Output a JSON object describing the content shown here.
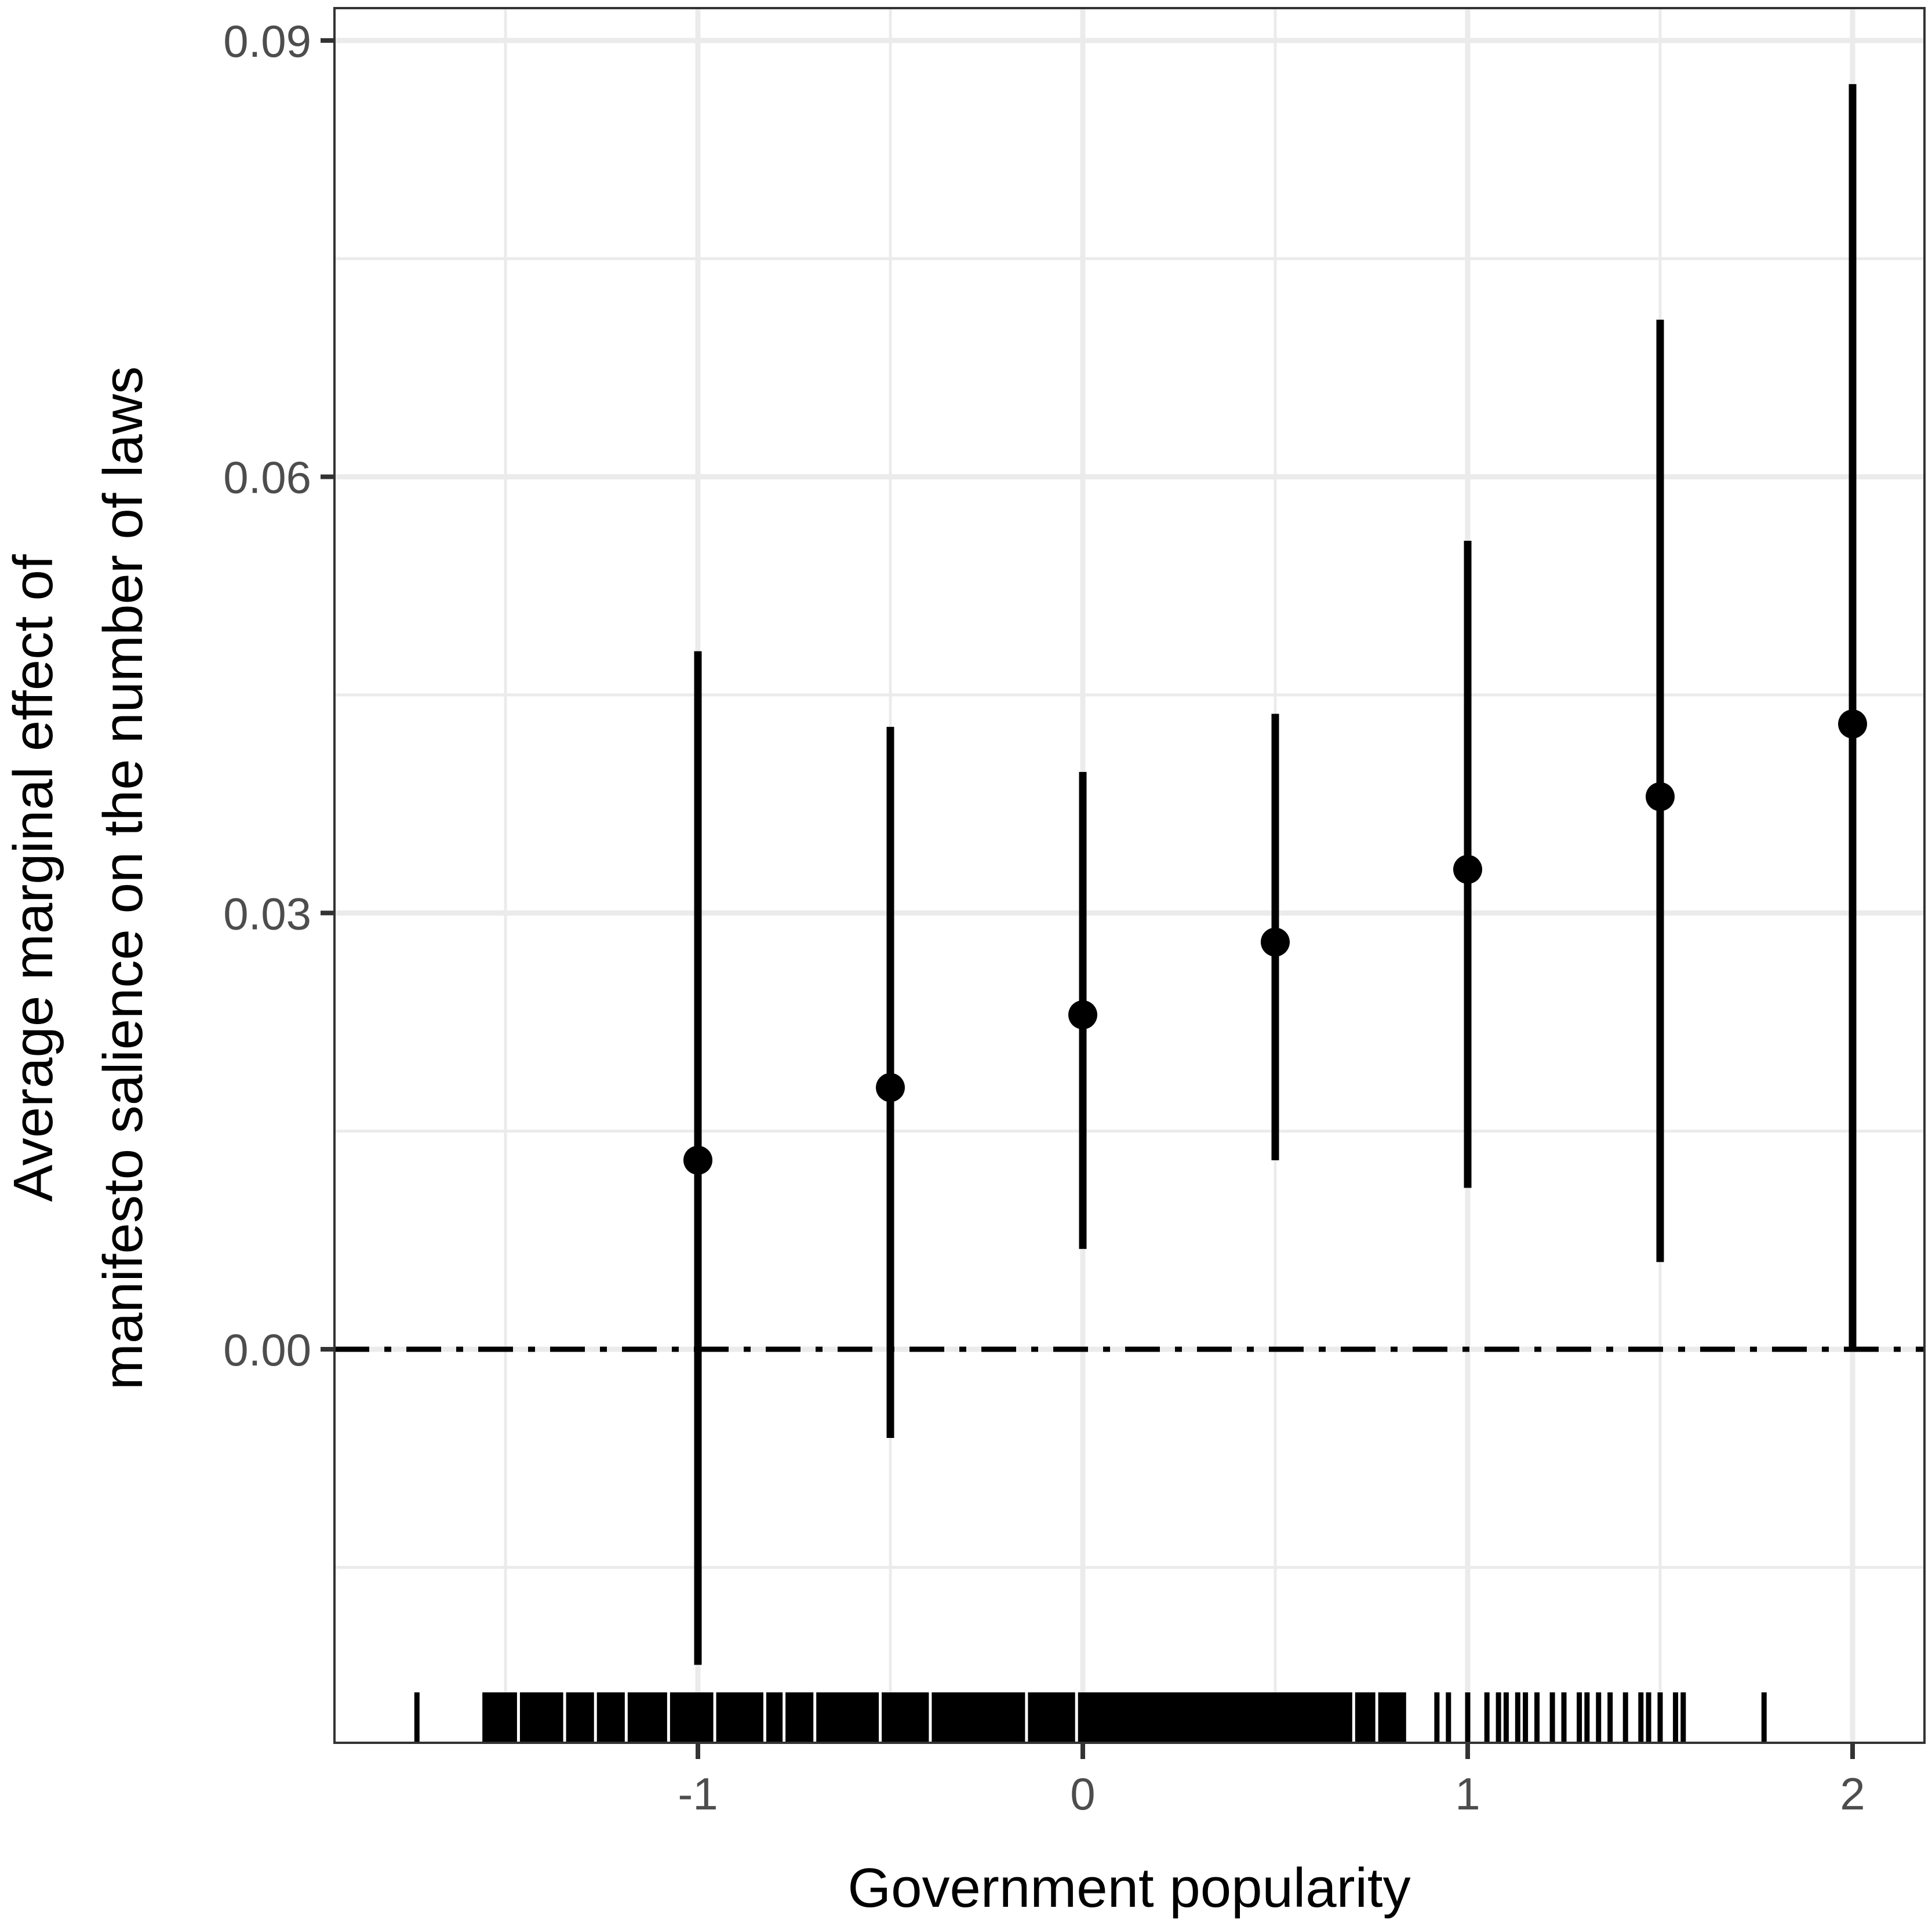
{
  "chart_data": {
    "type": "errorbar",
    "title": "",
    "xlabel": "Government popularity",
    "ylabel_lines": [
      "Average marginal effect of",
      "manifesto salience on the number of laws"
    ],
    "ylabel": "Average marginal effect of manifesto salience on the number of laws",
    "x_ticks": [
      -1,
      0,
      1,
      2
    ],
    "x_tick_labels": [
      "-1",
      "0",
      "1",
      "2"
    ],
    "y_ticks": [
      0.0,
      0.03,
      0.06,
      0.09
    ],
    "y_tick_labels": [
      "0.00",
      "0.03",
      "0.06",
      "0.09"
    ],
    "xlim": [
      -1.9,
      2.18
    ],
    "ylim": [
      -0.027,
      0.092
    ],
    "grid": true,
    "reference_line": {
      "y": 0,
      "style": "dot-dash"
    },
    "series": [
      {
        "name": "Average marginal effect",
        "x": [
          -1,
          -0.5,
          0,
          0.5,
          1,
          1.5,
          2
        ],
        "estimate": [
          0.013,
          0.018,
          0.023,
          0.028,
          0.033,
          0.038,
          0.043
        ],
        "lower": [
          -0.0217,
          -0.0061,
          0.0069,
          0.013,
          0.0111,
          0.006,
          0.0
        ],
        "upper": [
          0.048,
          0.0428,
          0.0397,
          0.0437,
          0.0556,
          0.0708,
          0.087
        ]
      }
    ],
    "rug": {
      "description": "Rug plot of observed Government popularity values along x-axis",
      "range": [
        -1.73,
        1.77
      ],
      "dense_region": [
        -1.56,
        0.84
      ],
      "sparse_ticks": [
        -1.73,
        0.92,
        0.95,
        1.0,
        1.05,
        1.08,
        1.1,
        1.13,
        1.15,
        1.18,
        1.22,
        1.25,
        1.29,
        1.31,
        1.34,
        1.37,
        1.41,
        1.45,
        1.47,
        1.5,
        1.54,
        1.56,
        1.77
      ]
    },
    "colors": {
      "points": "#000000",
      "grid": "#ebebeb",
      "panel_border": "#333333",
      "tick_text": "#4d4d4d"
    }
  }
}
